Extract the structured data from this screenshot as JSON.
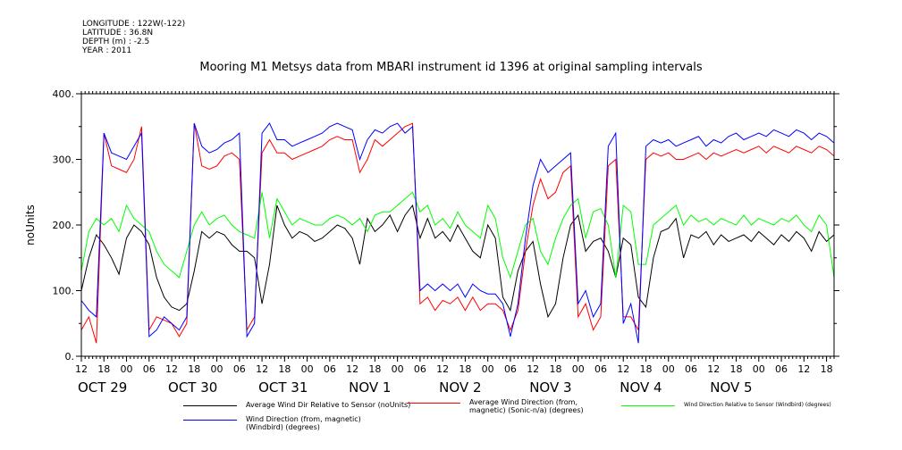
{
  "header": {
    "longitude": "LONGITUDE : 122W(-122)",
    "latitude": "LATITUDE : 36.8N",
    "depth": "DEPTH (m) : -2.5",
    "year": "YEAR : 2011"
  },
  "chart_data": {
    "type": "line",
    "title": "Mooring M1 Metsys data from MBARI instrument id 1396 at original sampling intervals",
    "ylabel": "noUnits",
    "ylim": [
      0,
      400
    ],
    "yticks": [
      0,
      100,
      200,
      300,
      400
    ],
    "ytick_labels": [
      "0.",
      "100.",
      "200.",
      "300.",
      "400."
    ],
    "x_range_hours": [
      0,
      200
    ],
    "xtick_labels": [
      {
        "h": 0,
        "label": "12"
      },
      {
        "h": 6,
        "label": "18"
      },
      {
        "h": 12,
        "label": "00"
      },
      {
        "h": 18,
        "label": "06"
      },
      {
        "h": 24,
        "label": "12"
      },
      {
        "h": 30,
        "label": "18"
      },
      {
        "h": 36,
        "label": "00"
      },
      {
        "h": 42,
        "label": "06"
      },
      {
        "h": 48,
        "label": "12"
      },
      {
        "h": 54,
        "label": "18"
      },
      {
        "h": 60,
        "label": "00"
      },
      {
        "h": 66,
        "label": "06"
      },
      {
        "h": 72,
        "label": "12"
      },
      {
        "h": 78,
        "label": "18"
      },
      {
        "h": 84,
        "label": "00"
      },
      {
        "h": 90,
        "label": "06"
      },
      {
        "h": 96,
        "label": "12"
      },
      {
        "h": 102,
        "label": "18"
      },
      {
        "h": 108,
        "label": "00"
      },
      {
        "h": 114,
        "label": "06"
      },
      {
        "h": 120,
        "label": "12"
      },
      {
        "h": 126,
        "label": "18"
      },
      {
        "h": 132,
        "label": "00"
      },
      {
        "h": 138,
        "label": "06"
      },
      {
        "h": 144,
        "label": "12"
      },
      {
        "h": 150,
        "label": "18"
      },
      {
        "h": 156,
        "label": "00"
      },
      {
        "h": 162,
        "label": "06"
      },
      {
        "h": 168,
        "label": "12"
      },
      {
        "h": 174,
        "label": "18"
      },
      {
        "h": 180,
        "label": "00"
      },
      {
        "h": 186,
        "label": "06"
      },
      {
        "h": 192,
        "label": "12"
      },
      {
        "h": 198,
        "label": "18"
      }
    ],
    "date_labels": [
      {
        "h": 0,
        "label": "OCT 29"
      },
      {
        "h": 24,
        "label": "OCT 30"
      },
      {
        "h": 48,
        "label": "OCT 31"
      },
      {
        "h": 72,
        "label": "NOV  1"
      },
      {
        "h": 96,
        "label": "NOV  2"
      },
      {
        "h": 120,
        "label": "NOV  3"
      },
      {
        "h": 144,
        "label": "NOV  4"
      },
      {
        "h": 168,
        "label": "NOV  5"
      }
    ],
    "grid": false,
    "series": [
      {
        "name": "Average Wind Dir Relative to Sensor (noUnits)",
        "color": "#000000",
        "x": [
          0,
          2,
          4,
          6,
          8,
          10,
          12,
          14,
          16,
          18,
          20,
          22,
          24,
          26,
          28,
          30,
          32,
          34,
          36,
          38,
          40,
          42,
          44,
          46,
          48,
          50,
          52,
          54,
          56,
          58,
          60,
          62,
          64,
          66,
          68,
          70,
          72,
          74,
          76,
          78,
          80,
          82,
          84,
          86,
          88,
          90,
          92,
          94,
          96,
          98,
          100,
          102,
          104,
          106,
          108,
          110,
          112,
          114,
          116,
          118,
          120,
          122,
          124,
          126,
          128,
          130,
          132,
          134,
          136,
          138,
          140,
          142,
          144,
          146,
          148,
          150,
          152,
          154,
          156,
          158,
          160,
          162,
          164,
          166,
          168,
          170,
          172,
          174,
          176,
          178,
          180,
          182,
          184,
          186,
          188,
          190,
          192,
          194,
          196,
          198,
          200
        ],
        "y": [
          100,
          150,
          185,
          170,
          150,
          125,
          180,
          200,
          190,
          170,
          120,
          90,
          75,
          70,
          80,
          130,
          190,
          180,
          190,
          185,
          170,
          160,
          160,
          150,
          80,
          140,
          230,
          200,
          180,
          190,
          185,
          175,
          180,
          190,
          200,
          195,
          180,
          140,
          210,
          190,
          200,
          215,
          190,
          215,
          230,
          180,
          210,
          180,
          190,
          175,
          200,
          180,
          160,
          150,
          200,
          180,
          90,
          70,
          130,
          160,
          175,
          110,
          60,
          80,
          150,
          200,
          215,
          160,
          175,
          180,
          160,
          120,
          180,
          170,
          90,
          75,
          150,
          190,
          195,
          210,
          150,
          185,
          180,
          190,
          170,
          185,
          175,
          180,
          185,
          175,
          190,
          180,
          170,
          185,
          175,
          190,
          180,
          160,
          190,
          175,
          185
        ]
      },
      {
        "name": "Average Wind Direction (from, magnetic) (Sonic-n/a) (degrees)",
        "color": "#ff0000",
        "x": [
          0,
          2,
          4,
          6,
          8,
          10,
          12,
          14,
          16,
          18,
          20,
          22,
          24,
          26,
          28,
          30,
          32,
          34,
          36,
          38,
          40,
          42,
          44,
          46,
          48,
          50,
          52,
          54,
          56,
          58,
          60,
          62,
          64,
          66,
          68,
          70,
          72,
          74,
          76,
          78,
          80,
          82,
          84,
          86,
          88,
          90,
          92,
          94,
          96,
          98,
          100,
          102,
          104,
          106,
          108,
          110,
          112,
          114,
          116,
          118,
          120,
          122,
          124,
          126,
          128,
          130,
          132,
          134,
          136,
          138,
          140,
          142,
          144,
          146,
          148,
          150,
          152,
          154,
          156,
          158,
          160,
          162,
          164,
          166,
          168,
          170,
          172,
          174,
          176,
          178,
          180,
          182,
          184,
          186,
          188,
          190,
          192,
          194,
          196,
          198,
          200
        ],
        "y": [
          40,
          60,
          20,
          340,
          290,
          285,
          280,
          300,
          350,
          40,
          60,
          55,
          50,
          30,
          50,
          355,
          290,
          285,
          290,
          305,
          310,
          300,
          40,
          60,
          310,
          330,
          310,
          310,
          300,
          305,
          310,
          315,
          320,
          330,
          335,
          330,
          330,
          280,
          300,
          330,
          320,
          330,
          340,
          350,
          355,
          80,
          90,
          70,
          85,
          80,
          90,
          70,
          90,
          70,
          80,
          80,
          70,
          40,
          70,
          160,
          230,
          270,
          240,
          250,
          280,
          290,
          60,
          80,
          40,
          60,
          290,
          300,
          60,
          60,
          40,
          300,
          310,
          305,
          310,
          300,
          300,
          305,
          310,
          300,
          310,
          305,
          310,
          315,
          310,
          315,
          320,
          310,
          320,
          315,
          310,
          320,
          315,
          310,
          320,
          315,
          305
        ]
      },
      {
        "name": "Wind Direction Relative to Sensor (Windbird) (degrees)",
        "color": "#00ff00",
        "x": [
          0,
          2,
          4,
          6,
          8,
          10,
          12,
          14,
          16,
          18,
          20,
          22,
          24,
          26,
          28,
          30,
          32,
          34,
          36,
          38,
          40,
          42,
          44,
          46,
          48,
          50,
          52,
          54,
          56,
          58,
          60,
          62,
          64,
          66,
          68,
          70,
          72,
          74,
          76,
          78,
          80,
          82,
          84,
          86,
          88,
          90,
          92,
          94,
          96,
          98,
          100,
          102,
          104,
          106,
          108,
          110,
          112,
          114,
          116,
          118,
          120,
          122,
          124,
          126,
          128,
          130,
          132,
          134,
          136,
          138,
          140,
          142,
          144,
          146,
          148,
          150,
          152,
          154,
          156,
          158,
          160,
          162,
          164,
          166,
          168,
          170,
          172,
          174,
          176,
          178,
          180,
          182,
          184,
          186,
          188,
          190,
          192,
          194,
          196,
          198,
          200
        ],
        "y": [
          130,
          190,
          210,
          200,
          210,
          190,
          230,
          210,
          200,
          190,
          160,
          140,
          130,
          120,
          160,
          200,
          220,
          200,
          210,
          215,
          200,
          190,
          185,
          180,
          250,
          180,
          240,
          220,
          200,
          210,
          205,
          200,
          200,
          210,
          215,
          210,
          200,
          210,
          190,
          215,
          220,
          220,
          230,
          240,
          250,
          220,
          230,
          200,
          210,
          195,
          220,
          200,
          190,
          180,
          230,
          210,
          150,
          120,
          160,
          200,
          210,
          160,
          140,
          180,
          210,
          230,
          240,
          180,
          220,
          225,
          200,
          120,
          230,
          220,
          140,
          140,
          200,
          210,
          220,
          230,
          200,
          215,
          205,
          210,
          200,
          210,
          205,
          200,
          215,
          200,
          210,
          205,
          200,
          210,
          205,
          215,
          200,
          190,
          215,
          200,
          120
        ]
      },
      {
        "name": "Wind Direction (from, magnetic) (Windbird) (degrees)",
        "color": "#0000ff",
        "x": [
          0,
          2,
          4,
          6,
          8,
          10,
          12,
          14,
          16,
          18,
          20,
          22,
          24,
          26,
          28,
          30,
          32,
          34,
          36,
          38,
          40,
          42,
          44,
          46,
          48,
          50,
          52,
          54,
          56,
          58,
          60,
          62,
          64,
          66,
          68,
          70,
          72,
          74,
          76,
          78,
          80,
          82,
          84,
          86,
          88,
          90,
          92,
          94,
          96,
          98,
          100,
          102,
          104,
          106,
          108,
          110,
          112,
          114,
          116,
          118,
          120,
          122,
          124,
          126,
          128,
          130,
          132,
          134,
          136,
          138,
          140,
          142,
          144,
          146,
          148,
          150,
          152,
          154,
          156,
          158,
          160,
          162,
          164,
          166,
          168,
          170,
          172,
          174,
          176,
          178,
          180,
          182,
          184,
          186,
          188,
          190,
          192,
          194,
          196,
          198,
          200
        ],
        "y": [
          85,
          70,
          60,
          340,
          310,
          305,
          300,
          320,
          340,
          30,
          40,
          60,
          50,
          40,
          60,
          355,
          320,
          310,
          315,
          325,
          330,
          340,
          30,
          50,
          340,
          355,
          330,
          330,
          320,
          325,
          330,
          335,
          340,
          350,
          355,
          350,
          345,
          300,
          330,
          345,
          340,
          350,
          355,
          340,
          350,
          100,
          110,
          100,
          110,
          100,
          110,
          90,
          110,
          100,
          95,
          95,
          80,
          30,
          80,
          180,
          260,
          300,
          280,
          290,
          300,
          310,
          80,
          100,
          60,
          80,
          320,
          340,
          50,
          80,
          20,
          320,
          330,
          325,
          330,
          320,
          325,
          330,
          335,
          320,
          330,
          325,
          335,
          340,
          330,
          335,
          340,
          335,
          345,
          340,
          335,
          345,
          340,
          330,
          340,
          335,
          325
        ]
      }
    ]
  }
}
